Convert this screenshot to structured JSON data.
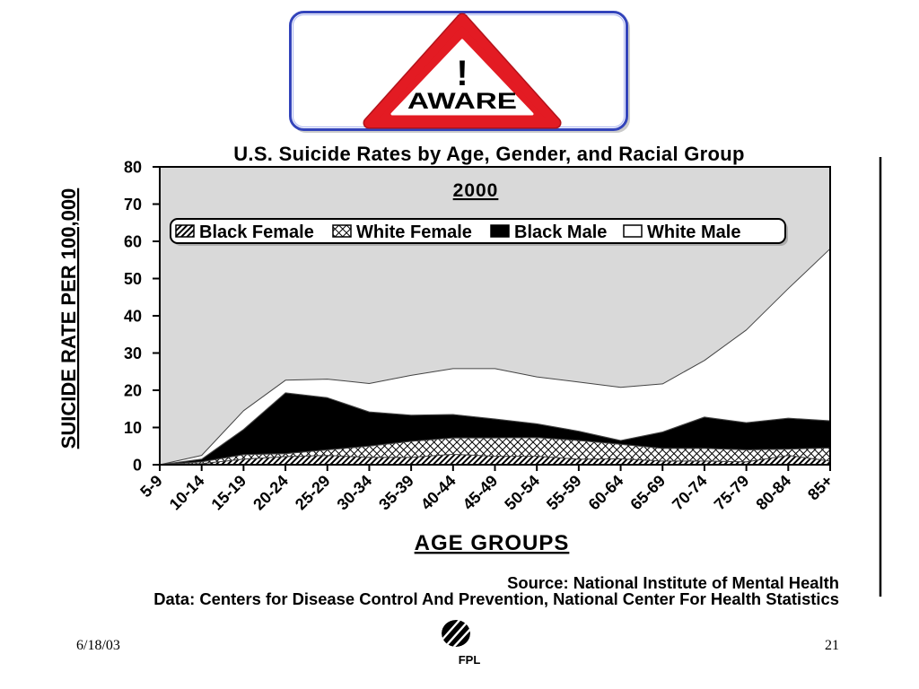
{
  "sign": {
    "symbol": "!",
    "label": "AWARE"
  },
  "chart_data": {
    "type": "area",
    "stacked": true,
    "title": "U.S. Suicide Rates by Age, Gender, and Racial Group",
    "subtitle": "2000",
    "xlabel": "AGE GROUPS",
    "ylabel": "SUICIDE RATE PER 100,000",
    "categories": [
      "5-9",
      "10-14",
      "15-19",
      "20-24",
      "25-29",
      "30-34",
      "35-39",
      "40-44",
      "45-49",
      "50-54",
      "55-59",
      "60-64",
      "65-69",
      "70-74",
      "75-79",
      "80-84",
      "85+"
    ],
    "ylim": [
      0,
      80
    ],
    "yticks": [
      0,
      10,
      20,
      30,
      40,
      50,
      60,
      70,
      80
    ],
    "grid": false,
    "legend_position": "top",
    "series": [
      {
        "name": "Black Female",
        "fill": "diagonal-hatch",
        "values": [
          0,
          0.3,
          1.5,
          2.2,
          2.5,
          2.0,
          2.0,
          2.8,
          2.3,
          2.3,
          1.5,
          1.6,
          1.0,
          1.0,
          0.8,
          2.5,
          1.0
        ]
      },
      {
        "name": "White Female",
        "fill": "crosshatch",
        "values": [
          0,
          0.5,
          1.2,
          0.8,
          1.5,
          3.0,
          4.3,
          4.4,
          4.9,
          5.0,
          5.0,
          3.9,
          3.4,
          3.4,
          3.2,
          1.7,
          3.5
        ]
      },
      {
        "name": "Black Male",
        "fill": "#000000",
        "values": [
          0,
          0.7,
          6.8,
          16.3,
          14.0,
          9.2,
          7.0,
          6.3,
          5.1,
          3.7,
          2.5,
          1.0,
          4.4,
          8.4,
          7.3,
          8.3,
          7.3
        ]
      },
      {
        "name": "White Male",
        "fill": "#ffffff",
        "values": [
          0,
          1.0,
          5.0,
          3.4,
          5.0,
          7.6,
          10.7,
          12.3,
          13.5,
          12.6,
          13.2,
          14.3,
          12.9,
          15.2,
          24.9,
          34.8,
          46.2
        ]
      }
    ]
  },
  "source": {
    "line1": "Source: National Institute of Mental Health",
    "line2": "Data: Centers for Disease Control And Prevention, National Center For Health Statistics"
  },
  "footer": {
    "date": "6/18/03",
    "page_number": "21",
    "logo_text": "FPL"
  },
  "colors": {
    "plot_background": "#d9d9d9",
    "sign_red": "#e31b23",
    "sign_red_dark": "#b3121a",
    "sign_border": "#3344bb"
  }
}
